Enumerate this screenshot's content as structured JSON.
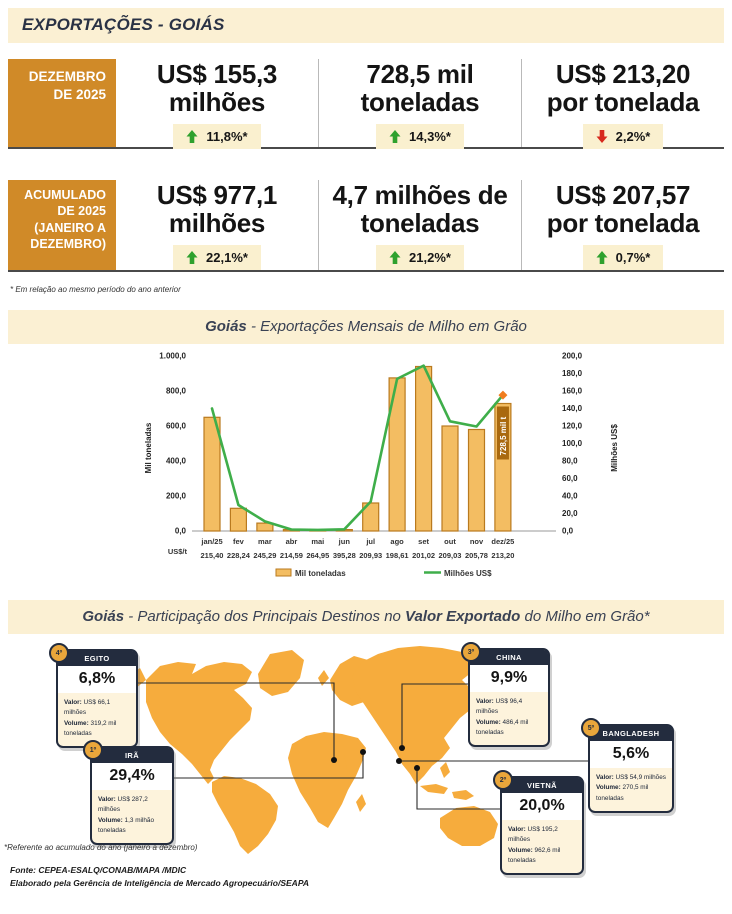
{
  "header": {
    "title": "EXPORTAÇÕES - GOIÁS"
  },
  "kpi": {
    "rows": [
      {
        "period_label": "DEZEMBRO\nDE 2025",
        "metrics": [
          {
            "line1": "US$ 155,3",
            "line2": "milhões",
            "change": "11,8%*",
            "direction": "up"
          },
          {
            "line1": "728,5 mil",
            "line2": "toneladas",
            "change": "14,3%*",
            "direction": "up"
          },
          {
            "line1": "US$ 213,20",
            "line2": "por tonelada",
            "change": "2,2%*",
            "direction": "down"
          }
        ]
      },
      {
        "period_label": "ACUMULADO\nDE 2025\n(JANEIRO A\nDEZEMBRO)",
        "metrics": [
          {
            "line1": "US$ 977,1",
            "line2": "milhões",
            "change": "22,1%*",
            "direction": "up"
          },
          {
            "line1": "4,7 milhões de",
            "line2": "toneladas",
            "change": "21,2%*",
            "direction": "up"
          },
          {
            "line1": "US$ 207,57",
            "line2": "por tonelada",
            "change": "0,7%*",
            "direction": "up"
          }
        ]
      }
    ],
    "footnote": "* Em relação ao mesmo período do ano anterior"
  },
  "chart_section": {
    "title_parts": [
      {
        "text": "Goiás",
        "bold": true
      },
      {
        "text": " - Exportações Mensais de Milho em Grão",
        "bold": false
      }
    ]
  },
  "chart_data": {
    "type": "bar+line",
    "title": "Goiás - Exportações Mensais de Milho em Grão",
    "categories": [
      "jan/25",
      "fev",
      "mar",
      "abr",
      "mai",
      "jun",
      "jul",
      "ago",
      "set",
      "out",
      "nov",
      "dez/25"
    ],
    "series": [
      {
        "name": "Mil toneladas",
        "type": "bar",
        "axis": "left",
        "values": [
          650,
          130,
          45,
          8,
          5,
          5,
          160,
          875,
          940,
          600,
          580,
          728.5
        ]
      },
      {
        "name": "Milhões US$",
        "type": "line",
        "axis": "right",
        "values": [
          140,
          29.7,
          11,
          1.7,
          1.3,
          2,
          33.6,
          173.8,
          189,
          125.4,
          119.4,
          155.3
        ]
      }
    ],
    "price_row_label": "US$/t",
    "price_per_ton": [
      "215,40",
      "228,24",
      "245,29",
      "214,59",
      "264,95",
      "395,28",
      "209,93",
      "198,61",
      "201,02",
      "209,03",
      "205,78",
      "213,20"
    ],
    "ylabel_left": "Mil toneladas",
    "ylabel_right": "Milhões US$",
    "left_ticks": [
      "0,0",
      "200,0",
      "400,0",
      "600,0",
      "800,0",
      "1.000,0"
    ],
    "right_ticks": [
      "0,0",
      "20,0",
      "40,0",
      "60,0",
      "80,0",
      "100,0",
      "120,0",
      "140,0",
      "160,0",
      "180,0",
      "200,0"
    ],
    "ylim_left": [
      0,
      1000
    ],
    "ylim_right": [
      0,
      200
    ],
    "annotation": "728,5 mil t",
    "legend_position": "bottom",
    "grid": false
  },
  "map_section": {
    "title_parts": [
      {
        "text": "Goiás",
        "bold": true
      },
      {
        "text": " - Participação dos Principais Destinos no ",
        "bold": false
      },
      {
        "text": "Valor Exportado",
        "bold": true
      },
      {
        "text": " do Milho em Grão*",
        "bold": false
      }
    ],
    "labels": {
      "valor": "Valor:",
      "volume": "Volume:"
    },
    "destinations": [
      {
        "rank": "1º",
        "name": "IRÃ",
        "percent": "29,4%",
        "valor": "US$ 287,2 milhões",
        "volume": "1,3 milhão toneladas"
      },
      {
        "rank": "2º",
        "name": "VIETNÃ",
        "percent": "20,0%",
        "valor": "US$ 195,2 milhões",
        "volume": "962,6 mil toneladas"
      },
      {
        "rank": "3º",
        "name": "CHINA",
        "percent": "9,9%",
        "valor": "US$ 96,4 milhões",
        "volume": "486,4 mil toneladas"
      },
      {
        "rank": "4º",
        "name": "EGITO",
        "percent": "6,8%",
        "valor": "US$ 66,1 milhões",
        "volume": "319,2 mil toneladas"
      },
      {
        "rank": "5º",
        "name": "BANGLADESH",
        "percent": "5,6%",
        "valor": "US$ 54,9 milhões",
        "volume": "270,5 mil toneladas"
      }
    ],
    "footnote": "*Referente ao acumulado do ano (janeiro a dezembro)"
  },
  "footer": {
    "fonte": "Fonte: CEPEA-ESALQ/CONAB/MAPA /MDIC",
    "elaborado": "Elaborado pela Gerência de Inteligência de Mercado Agropecuário/SEAPA"
  },
  "colors": {
    "accent_orange": "#D08A28",
    "map_orange": "#F6AC3D",
    "navy": "#232C3E",
    "cream": "#FBF0D3",
    "green": "#2FA12E",
    "red": "#D7291D",
    "bar_fill": "#F3BD62",
    "bar_border": "#B97A1F",
    "line_green": "#3FAE4A",
    "marker_orange": "#F07D1E",
    "annotation_bg": "#A9690F"
  }
}
